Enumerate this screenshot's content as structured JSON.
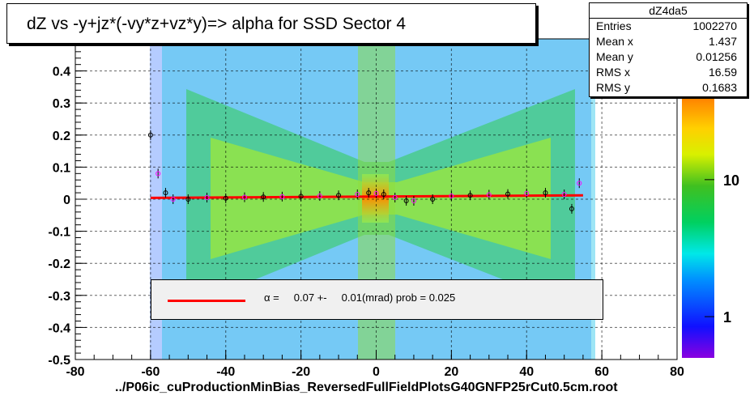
{
  "window": {
    "title": "dZ vs -y+jz*(-vy*z+vz*y)=> alpha for SSD Sector 4",
    "footer": "../P06ic_cuProductionMinBias_ReversedFullFieldPlotsG40GNFP25rCut0.5cm.root"
  },
  "stats": {
    "name": "dZ4da5",
    "rows": [
      {
        "key": "Entries",
        "value": "1002270"
      },
      {
        "key": "Mean x",
        "value": "1.437"
      },
      {
        "key": "Mean y",
        "value": "0.01256"
      },
      {
        "key": "RMS x",
        "value": "16.59"
      },
      {
        "key": "RMS y",
        "value": "0.1683"
      }
    ]
  },
  "legend": {
    "text": "α =     0.07 +-     0.01(mrad) prob = 0.025",
    "line_color": "#ff0000"
  },
  "colors": {
    "fit_line": "#ff0000",
    "profile_points": "#000000",
    "profile_markers_alt": "#ff00ff",
    "frame": "#000000"
  },
  "chart_data": {
    "type": "heatmap",
    "title": "dZ vs -y+jz*(-vy*z+vz*y)=> alpha for SSD Sector 4",
    "xlabel": "",
    "ylabel": "",
    "xlim": [
      -80,
      80
    ],
    "ylim": [
      -0.5,
      0.5
    ],
    "x_ticks": [
      -80,
      -60,
      -40,
      -20,
      0,
      20,
      40,
      60,
      80
    ],
    "x_tick_labels": [
      "-80",
      "-60",
      "-40",
      "-20",
      "0",
      "20",
      "40",
      "60",
      "80"
    ],
    "y_ticks": [
      -0.5,
      -0.4,
      -0.3,
      -0.2,
      -0.1,
      0,
      0.1,
      0.2,
      0.3,
      0.4
    ],
    "y_tick_labels": [
      "-0.5",
      "-0.4",
      "-0.3",
      "-0.2",
      "-0.1",
      "0",
      "0.1",
      "0.2",
      "0.3",
      "0.4"
    ],
    "grid": true,
    "colorbar": {
      "scale": "log",
      "range": [
        0.5,
        40
      ],
      "tick_values": [
        1,
        10
      ],
      "tick_labels": [
        "1",
        "10"
      ]
    },
    "fit_line": {
      "x": [
        -60,
        55
      ],
      "y": [
        0.004,
        0.012
      ]
    },
    "profile": {
      "x": [
        -60,
        -58,
        -56,
        -54,
        -50,
        -45,
        -40,
        -35,
        -30,
        -25,
        -20,
        -15,
        -10,
        -5,
        -2,
        0,
        2,
        5,
        8,
        10,
        15,
        20,
        25,
        30,
        35,
        40,
        45,
        50,
        52,
        54
      ],
      "y": [
        0.2,
        0.08,
        0.02,
        0.0,
        0.0,
        0.005,
        0.003,
        0.006,
        0.007,
        0.008,
        0.009,
        0.01,
        0.012,
        0.015,
        0.02,
        0.018,
        0.015,
        0.005,
        -0.005,
        -0.005,
        0.0,
        0.01,
        0.012,
        0.014,
        0.016,
        0.018,
        0.02,
        0.015,
        -0.03,
        0.05
      ]
    },
    "legend": {
      "label": "α =     0.07 +-     0.01(mrad) prob = 0.025",
      "position": "bottom-center"
    }
  }
}
